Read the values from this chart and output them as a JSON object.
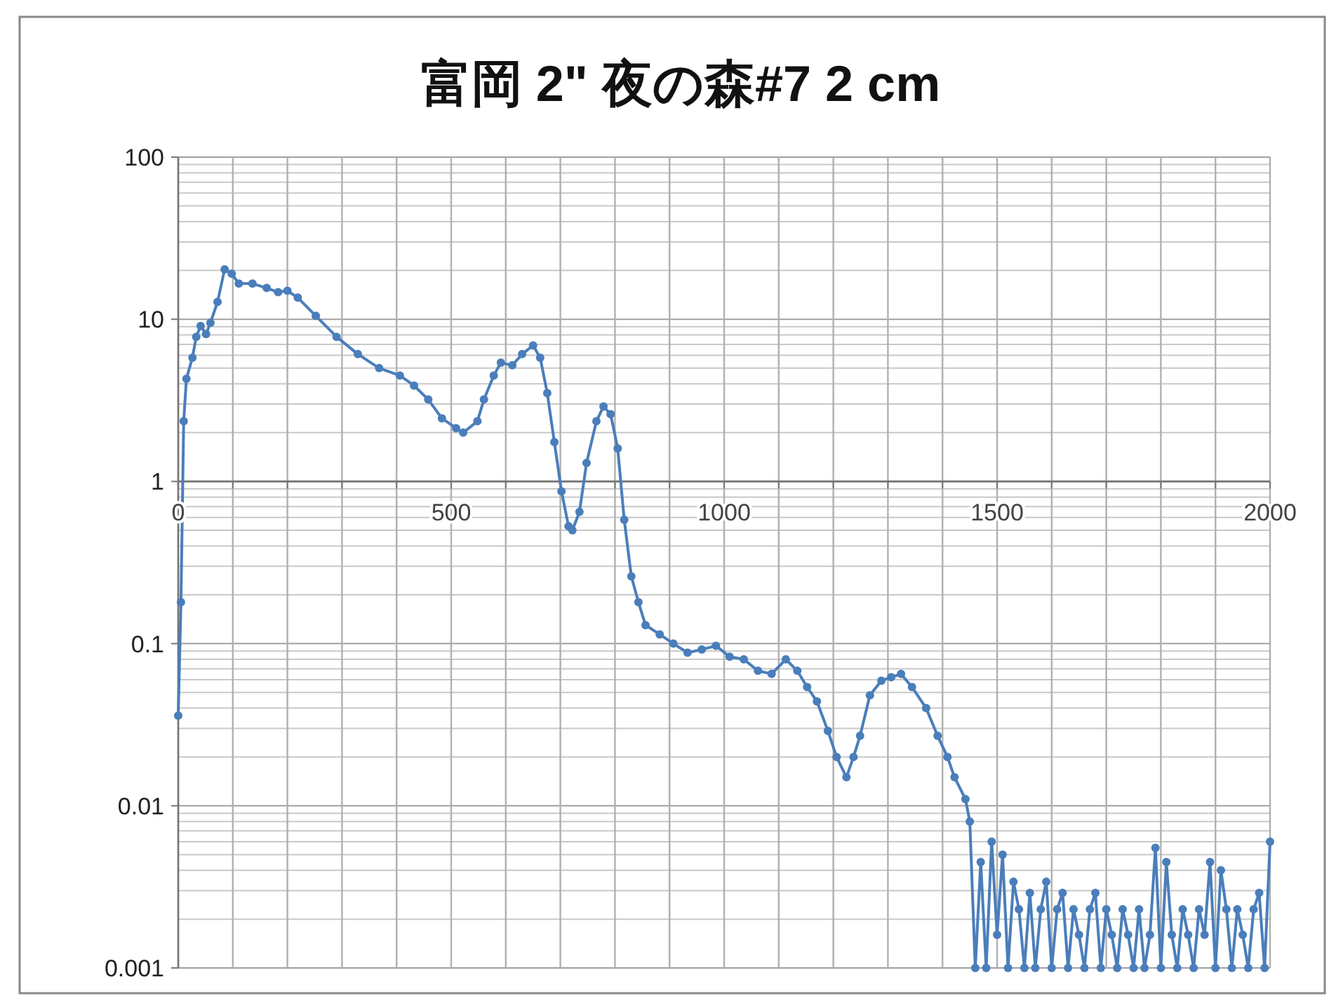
{
  "chart_data": {
    "type": "line",
    "title": "富岡 2\" 夜の森#7 2 cm",
    "log": "y",
    "grid": true,
    "marker": "circle",
    "line_style": "solid",
    "xlim": [
      0,
      2000
    ],
    "xticks": [
      0,
      {
        "value": 100,
        "label": null
      },
      {
        "value": 200,
        "label": null
      },
      {
        "value": 300,
        "label": null
      },
      {
        "value": 400,
        "label": null
      },
      500,
      {
        "value": 600,
        "label": null
      },
      {
        "value": 700,
        "label": null
      },
      {
        "value": 800,
        "label": null
      },
      {
        "value": 900,
        "label": null
      },
      1000,
      {
        "value": 1100,
        "label": null
      },
      {
        "value": 1200,
        "label": null
      },
      {
        "value": 1300,
        "label": null
      },
      {
        "value": 1400,
        "label": null
      },
      1500,
      {
        "value": 1600,
        "label": null
      },
      {
        "value": 1700,
        "label": null
      },
      {
        "value": 1800,
        "label": null
      },
      {
        "value": 1900,
        "label": null
      },
      2000
    ],
    "ylim": [
      0.001,
      100
    ],
    "yticks": [
      0.001,
      0.01,
      0.1,
      1,
      10,
      100
    ],
    "series": [
      {
        "color": "#4a7ebb",
        "x": [
          0,
          5,
          10,
          15,
          26,
          33,
          41,
          51,
          59,
          72,
          85,
          98,
          111,
          136,
          162,
          183,
          200,
          219,
          252,
          290,
          329,
          368,
          406,
          432,
          458,
          483,
          509,
          522,
          548,
          560,
          578,
          591,
          612,
          630,
          650,
          663,
          676,
          689,
          702,
          715,
          722,
          735,
          748,
          766,
          779,
          792,
          805,
          817,
          830,
          843,
          856,
          882,
          907,
          933,
          959,
          985,
          1010,
          1036,
          1062,
          1087,
          1113,
          1134,
          1152,
          1170,
          1190,
          1206,
          1224,
          1237,
          1249,
          1267,
          1288,
          1306,
          1324,
          1344,
          1370,
          1391,
          1409,
          1422,
          1442,
          1450,
          1460,
          1470,
          1480,
          1490,
          1500,
          1510,
          1520,
          1530,
          1540,
          1550,
          1560,
          1570,
          1580,
          1590,
          1600,
          1610,
          1620,
          1630,
          1640,
          1650,
          1660,
          1670,
          1680,
          1690,
          1700,
          1710,
          1720,
          1730,
          1740,
          1750,
          1760,
          1770,
          1780,
          1790,
          1800,
          1810,
          1820,
          1830,
          1840,
          1850,
          1860,
          1870,
          1880,
          1890,
          1900,
          1910,
          1920,
          1930,
          1940,
          1950,
          1960,
          1970,
          1980,
          1990,
          2000
        ],
        "values": [
          0.036,
          0.18,
          2.35,
          4.3,
          5.8,
          7.8,
          9.1,
          8.1,
          9.5,
          12.8,
          20.3,
          19.1,
          16.6,
          16.6,
          15.6,
          14.7,
          15,
          13.6,
          10.5,
          7.8,
          6.1,
          5.0,
          4.5,
          3.9,
          3.2,
          2.45,
          2.13,
          2.0,
          2.35,
          3.2,
          4.5,
          5.4,
          5.2,
          6.1,
          6.9,
          5.8,
          3.5,
          1.75,
          0.87,
          0.53,
          0.5,
          0.65,
          1.3,
          2.35,
          2.9,
          2.6,
          1.6,
          0.58,
          0.26,
          0.18,
          0.13,
          0.114,
          0.1,
          0.088,
          0.092,
          0.097,
          0.083,
          0.08,
          0.068,
          0.065,
          0.08,
          0.068,
          0.054,
          0.044,
          0.029,
          0.02,
          0.015,
          0.02,
          0.027,
          0.048,
          0.059,
          0.062,
          0.065,
          0.054,
          0.04,
          0.027,
          0.02,
          0.015,
          0.011,
          0.008,
          0.001,
          0.0045,
          0.001,
          0.006,
          0.0016,
          0.005,
          0.001,
          0.0034,
          0.0023,
          0.001,
          0.0029,
          0.001,
          0.0023,
          0.0034,
          0.001,
          0.0023,
          0.0029,
          0.001,
          0.0023,
          0.0016,
          0.001,
          0.0023,
          0.0029,
          0.001,
          0.0023,
          0.0016,
          0.001,
          0.0023,
          0.0016,
          0.001,
          0.0023,
          0.001,
          0.0016,
          0.0055,
          0.001,
          0.0045,
          0.0016,
          0.001,
          0.0023,
          0.0016,
          0.001,
          0.0023,
          0.0016,
          0.0045,
          0.001,
          0.004,
          0.0023,
          0.001,
          0.0023,
          0.0016,
          0.001,
          0.0023,
          0.0029,
          0.001,
          0.006
        ]
      }
    ]
  }
}
